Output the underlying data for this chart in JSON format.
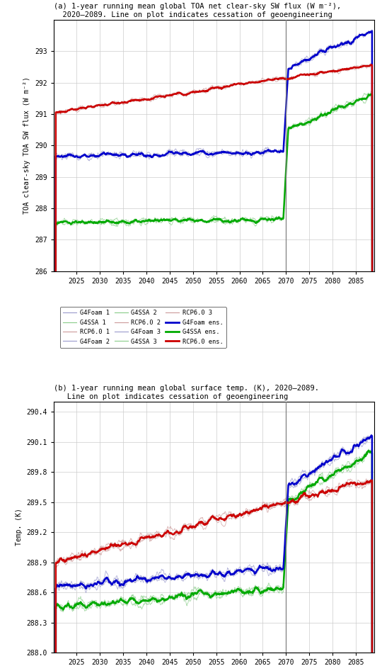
{
  "title_a": "(a) 1-year running mean global TOA net clear-sky SW flux (W m⁻²),\n  2020–2089. Line on plot indicates cessation of geoengineering",
  "title_b": "(b) 1-year running mean global surface temp. (K), 2020–2089.\n   Line on plot indicates cessation of geoengineering",
  "ylabel_a": "TOA clear-sky TOA SW flux (W m⁻²)",
  "ylabel_b": "Temp. (K)",
  "xlim": [
    2020,
    2089
  ],
  "ylim_a": [
    286,
    294
  ],
  "ylim_b": [
    288,
    290.5
  ],
  "yticks_a": [
    286,
    287,
    288,
    289,
    290,
    291,
    292,
    293
  ],
  "yticks_b": [
    288,
    288.3,
    288.6,
    288.9,
    289.2,
    289.5,
    289.8,
    290.1,
    290.4
  ],
  "xticks": [
    2025,
    2030,
    2035,
    2040,
    2045,
    2050,
    2055,
    2060,
    2065,
    2070,
    2075,
    2080,
    2085
  ],
  "cessation_year": 2070,
  "colors": {
    "G4Foam_ind": "#9999cc",
    "G4Foam_ens": "#0000cc",
    "G4SSA_ind": "#88cc88",
    "G4SSA_ens": "#00aa00",
    "RCP60_ind": "#cc9999",
    "RCP60_ens": "#cc0000"
  },
  "panel_a": {
    "G4SSA_base": 287.55,
    "G4SSA_trend_pre": 0.002,
    "G4SSA_jump": 2.8,
    "G4SSA_trend_post": 0.065,
    "G4Foam_base": 289.65,
    "G4Foam_trend_pre": 0.003,
    "G4Foam_jump": 2.65,
    "G4Foam_trend_post": 0.065,
    "RCP60_base": 291.05,
    "RCP60_trend_pre": 0.022,
    "RCP60_jump": 0.0,
    "RCP60_trend_post": 0.022,
    "noise_a": 0.22,
    "noise_rcp": 0.14
  },
  "panel_b": {
    "G4Foam_base": 288.65,
    "G4Foam_trend_pre": 0.004,
    "G4Foam_jump": 0.8,
    "G4Foam_trend_post": 0.027,
    "G4SSA_base": 288.45,
    "G4SSA_trend_pre": 0.004,
    "G4SSA_jump": 0.85,
    "G4SSA_trend_post": 0.027,
    "RCP60_base": 288.9,
    "RCP60_trend_pre": 0.012,
    "RCP60_jump": 0.0,
    "RCP60_trend_post": 0.012,
    "noise_geo": 0.1,
    "noise_rcp": 0.09
  }
}
